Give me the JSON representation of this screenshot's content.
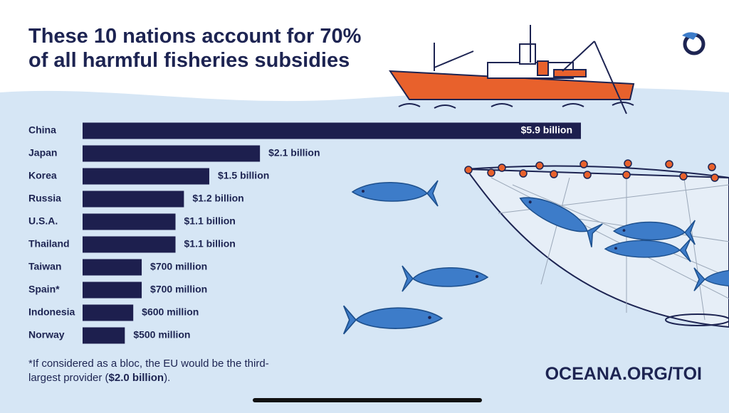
{
  "chart_data": {
    "type": "bar",
    "orientation": "horizontal",
    "title": "These 10 nations account for 70% of all harmful fisheries subsidies",
    "categories": [
      "China",
      "Japan",
      "Korea",
      "Russia",
      "U.S.A.",
      "Thailand",
      "Taiwan",
      "Spain*",
      "Indonesia",
      "Norway"
    ],
    "values": [
      5900000000,
      2100000000,
      1500000000,
      1200000000,
      1100000000,
      1100000000,
      700000000,
      700000000,
      600000000,
      500000000
    ],
    "value_labels": [
      "$5.9 billion",
      "$2.1 billion",
      "$1.5 billion",
      "$1.2 billion",
      "$1.1 billion",
      "$1.1 billion",
      "$700 million",
      "$700 million",
      "$600 million",
      "$500 million"
    ],
    "color": "#1d1f4e",
    "footnote": [
      "*If considered as a bloc, the EU would be the third-largest provider (",
      "$2.0 billion",
      ")."
    ],
    "source": "OCEANA.ORG/TOI"
  }
}
